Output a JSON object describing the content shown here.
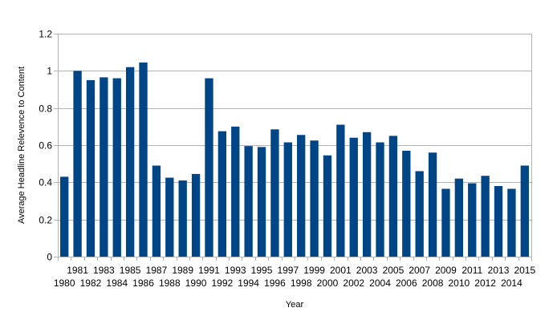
{
  "chart_data": {
    "type": "bar",
    "title": "",
    "xlabel": "Year",
    "ylabel": "Average Headline Relevence to Content",
    "ylim": [
      0,
      1.2
    ],
    "yticks": [
      "0",
      "0.2",
      "0.4",
      "0.6",
      "0.8",
      "1",
      "1.2"
    ],
    "grid": true,
    "legend": "none",
    "bar_color": "#004586",
    "grid_color": "#b3b3b3",
    "categories": [
      "1980",
      "1981",
      "1982",
      "1983",
      "1984",
      "1985",
      "1986",
      "1987",
      "1988",
      "1989",
      "1990",
      "1991",
      "1992",
      "1993",
      "1994",
      "1995",
      "1996",
      "1997",
      "1998",
      "1999",
      "2000",
      "2001",
      "2002",
      "2003",
      "2004",
      "2005",
      "2006",
      "2007",
      "2008",
      "2009",
      "2010",
      "2011",
      "2012",
      "2013",
      "2014",
      "2015"
    ],
    "values": [
      0.43,
      1.0,
      0.95,
      0.965,
      0.96,
      1.02,
      1.045,
      0.49,
      0.425,
      0.41,
      0.445,
      0.96,
      0.675,
      0.7,
      0.595,
      0.59,
      0.685,
      0.615,
      0.655,
      0.625,
      0.545,
      0.71,
      0.64,
      0.67,
      0.615,
      0.65,
      0.57,
      0.46,
      0.56,
      0.365,
      0.42,
      0.395,
      0.435,
      0.38,
      0.365,
      0.49
    ]
  }
}
